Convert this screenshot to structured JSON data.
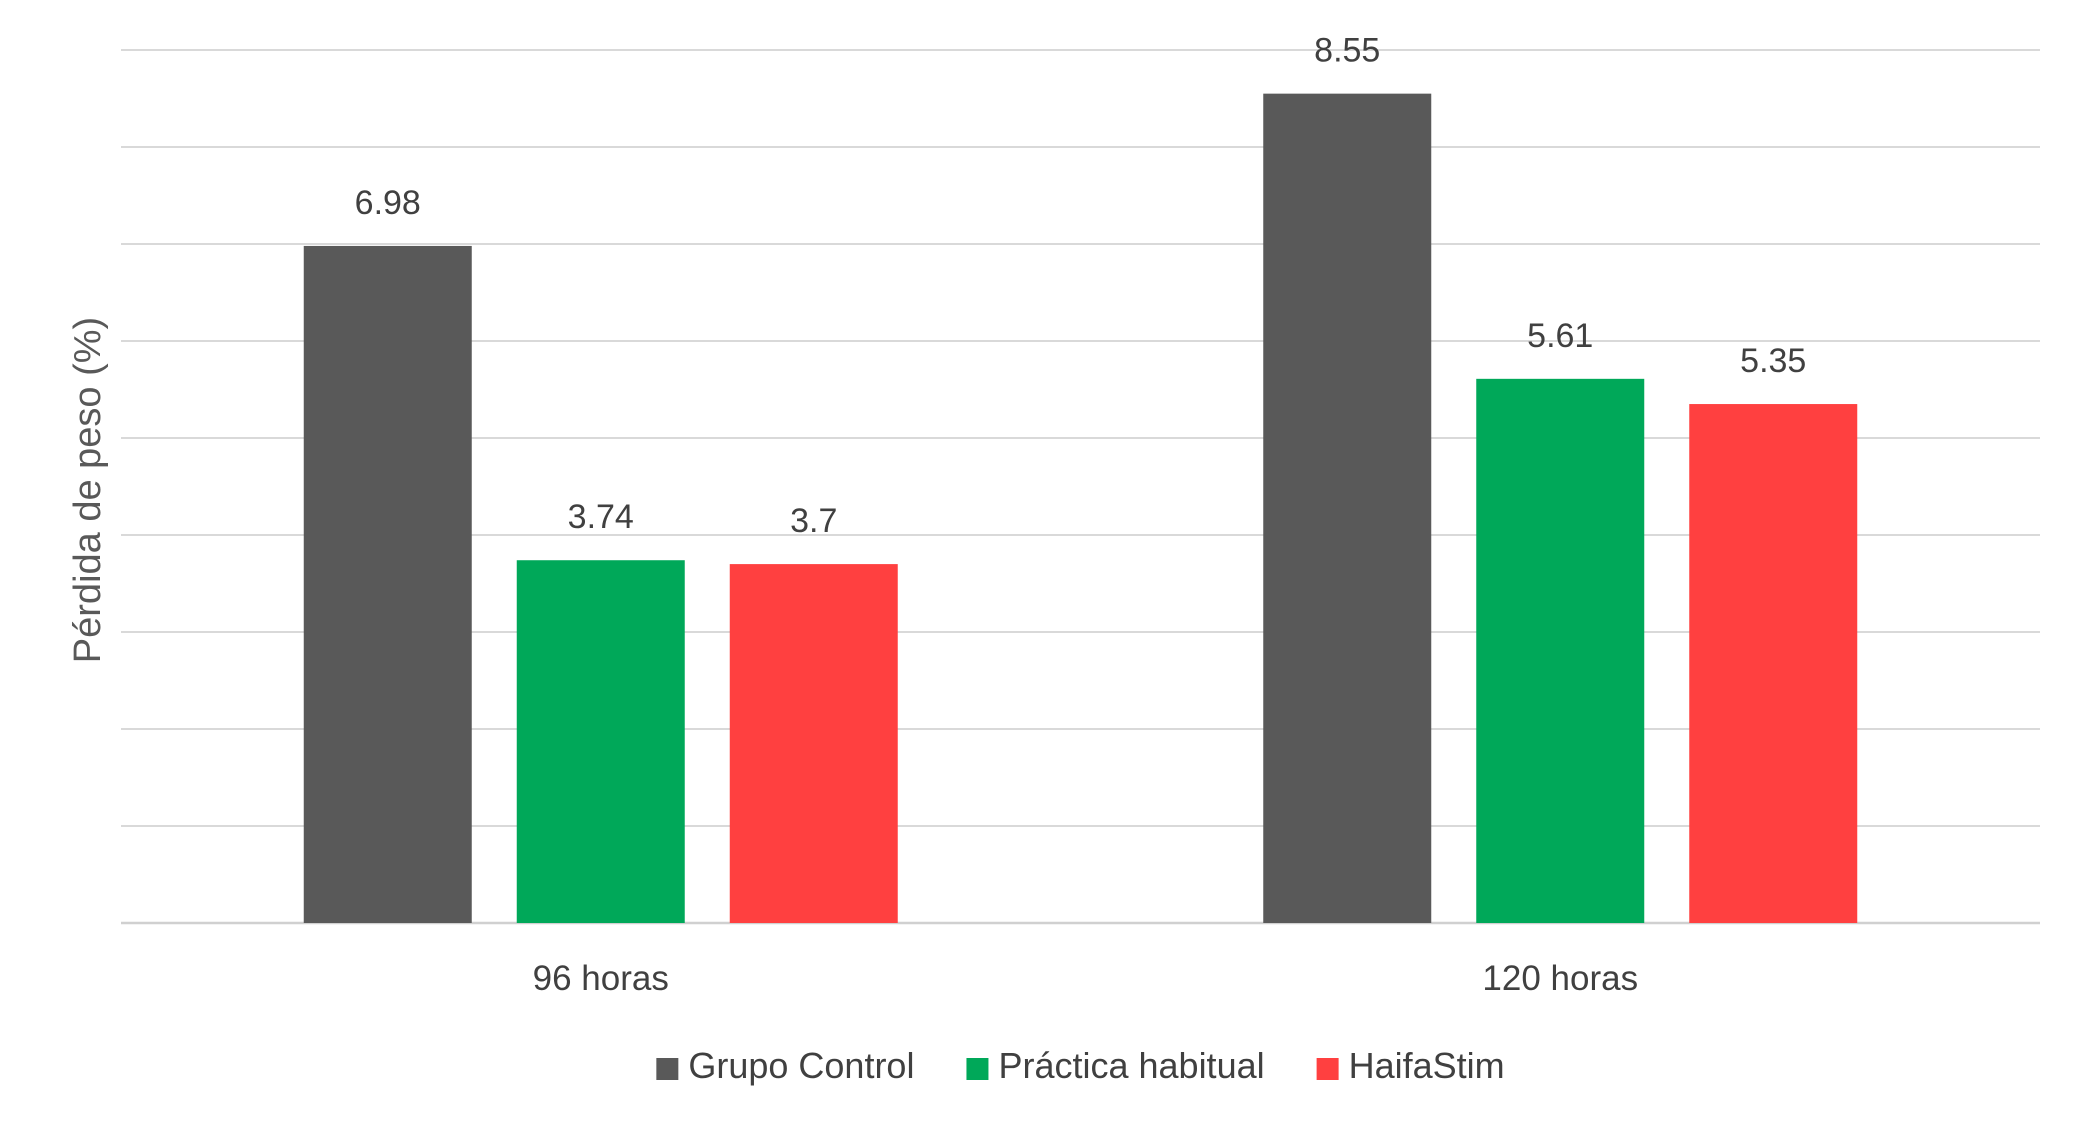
{
  "chart_data": {
    "type": "bar",
    "title": "",
    "xlabel": "",
    "ylabel": "Pérdida de peso (%)",
    "ylim": [
      0,
      9
    ],
    "grid": true,
    "legend_position": "bottom",
    "categories": [
      "96 horas",
      "120 horas"
    ],
    "series": [
      {
        "name": "Grupo Control",
        "color": "#595959",
        "values": [
          6.98,
          8.55
        ],
        "labels": [
          "6.98",
          "8.55"
        ]
      },
      {
        "name": "Práctica habitual",
        "color": "#00a859",
        "values": [
          3.74,
          5.61
        ],
        "labels": [
          "3.74",
          "5.61"
        ]
      },
      {
        "name": "HaifaStim",
        "color": "#ff4040",
        "values": [
          3.7,
          5.35
        ],
        "labels": [
          "3.7",
          "5.35"
        ]
      }
    ]
  }
}
